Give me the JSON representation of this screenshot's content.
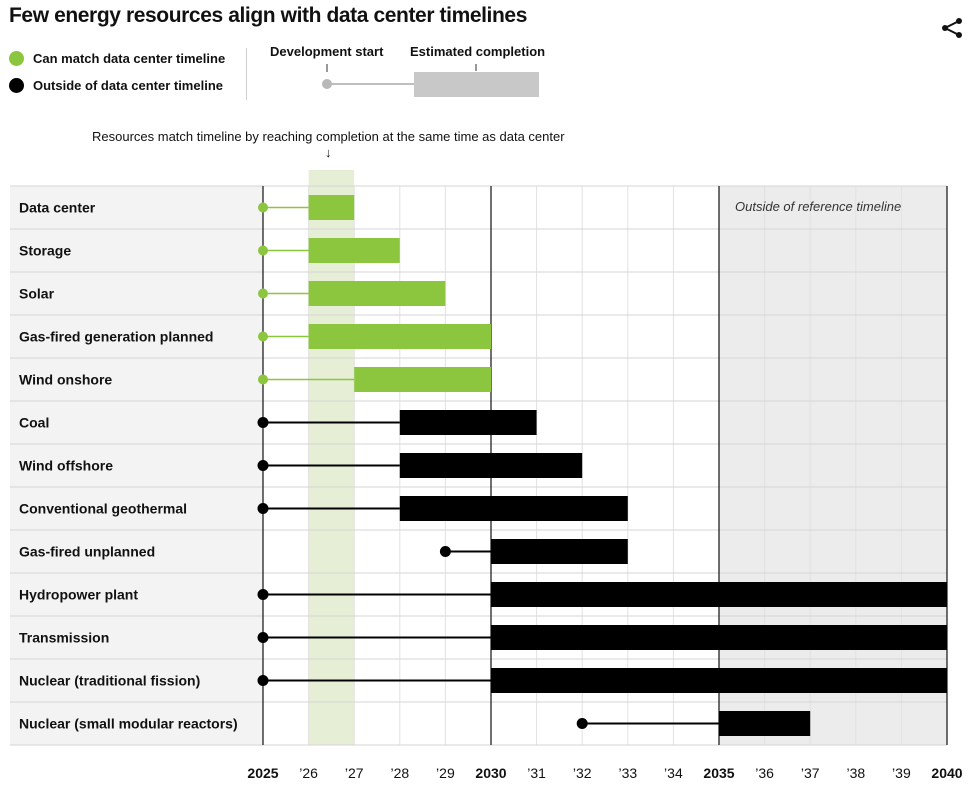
{
  "title": "Few energy resources align with data center timelines",
  "share_icon": "share-icon",
  "legend": [
    {
      "label": "Can match data center timeline",
      "color": "#8cc63f"
    },
    {
      "label": "Outside of data center timeline",
      "color": "#000000"
    }
  ],
  "key": {
    "development_start": "Development start",
    "estimated_completion": "Estimated completion"
  },
  "annotation": "Resources match timeline by reaching completion at the same time as data center",
  "annotation_arrow": "↓",
  "chart_data": {
    "type": "gantt",
    "title": "Few energy resources align with data center timelines",
    "x_range": [
      2025,
      2040
    ],
    "x_ticks": [
      "2025",
      "’26",
      "’27",
      "’28",
      "’29",
      "2030",
      "’31",
      "’32",
      "’33",
      "’34",
      "2035",
      "’36",
      "’37",
      "’38",
      "’39",
      "2040"
    ],
    "highlight_band": [
      2026,
      2027
    ],
    "reference_limit": 2035,
    "reference_label": "Outside of reference timeline",
    "grid": true,
    "rows": [
      {
        "name": "Data center",
        "dev_start": 2025,
        "build_start": 2026,
        "completion": 2027,
        "match": true
      },
      {
        "name": "Storage",
        "dev_start": 2025,
        "build_start": 2026,
        "completion": 2028,
        "match": true
      },
      {
        "name": "Solar",
        "dev_start": 2025,
        "build_start": 2026,
        "completion": 2029,
        "match": true
      },
      {
        "name": "Gas-fired generation planned",
        "dev_start": 2025,
        "build_start": 2026,
        "completion": 2030,
        "match": true
      },
      {
        "name": "Wind onshore",
        "dev_start": 2025,
        "build_start": 2027,
        "completion": 2030,
        "match": true
      },
      {
        "name": "Coal",
        "dev_start": 2025,
        "build_start": 2028,
        "completion": 2031,
        "match": false
      },
      {
        "name": "Wind offshore",
        "dev_start": 2025,
        "build_start": 2028,
        "completion": 2032,
        "match": false
      },
      {
        "name": "Conventional geothermal",
        "dev_start": 2025,
        "build_start": 2028,
        "completion": 2033,
        "match": false
      },
      {
        "name": "Gas-fired unplanned",
        "dev_start": 2029,
        "build_start": 2030,
        "completion": 2033,
        "match": false
      },
      {
        "name": "Hydropower plant",
        "dev_start": 2025,
        "build_start": 2030,
        "completion": 2040,
        "match": false
      },
      {
        "name": "Transmission",
        "dev_start": 2025,
        "build_start": 2030,
        "completion": 2040,
        "match": false
      },
      {
        "name": "Nuclear (traditional fission)",
        "dev_start": 2025,
        "build_start": 2030,
        "completion": 2040,
        "match": false
      },
      {
        "name": "Nuclear (small modular reactors)",
        "dev_start": 2032,
        "build_start": 2035,
        "completion": 2037,
        "match": false
      }
    ],
    "colors": {
      "match": "#8cc63f",
      "outside": "#000000",
      "band": "#e6efd6",
      "shade": "#ececec",
      "label_panel": "#f3f3f3",
      "grid": "#e2e2e2"
    }
  }
}
